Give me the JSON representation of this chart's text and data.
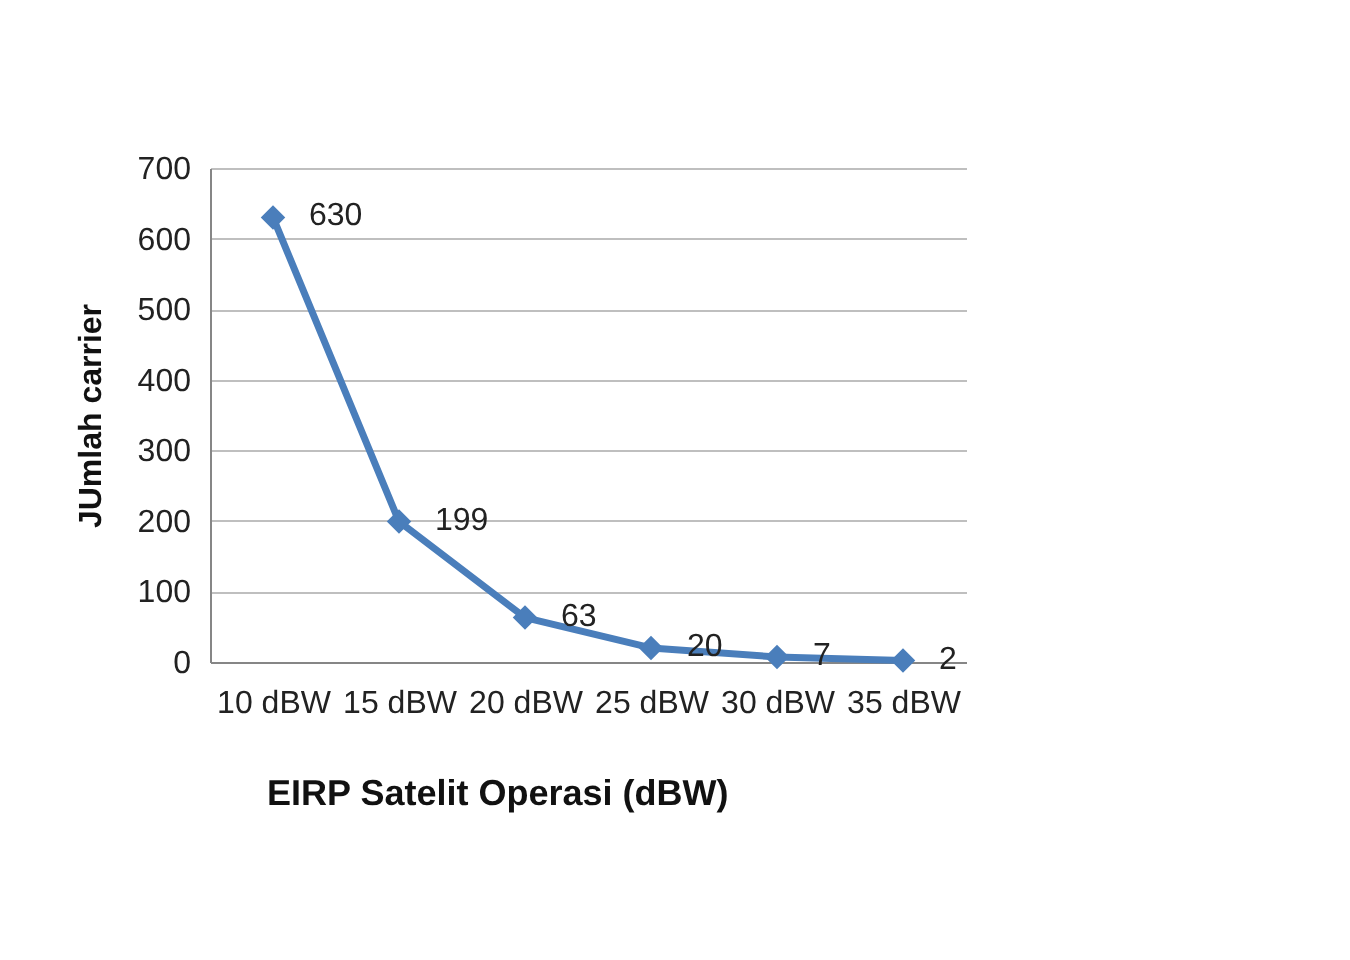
{
  "chart_data": {
    "type": "line",
    "xlabel": "EIRP Satelit Operasi (dBW)",
    "ylabel": "JUmlah carrier",
    "categories": [
      "10 dBW",
      "15 dBW",
      "20 dBW",
      "25 dBW",
      "30 dBW",
      "35 dBW"
    ],
    "series": [
      {
        "color": "#4a7ebb",
        "values": [
          630,
          199,
          63,
          20,
          7,
          2
        ]
      }
    ],
    "ylim": [
      0,
      700
    ],
    "yticks": [
      0,
      100,
      200,
      300,
      400,
      500,
      600,
      700
    ],
    "grid": "y",
    "marker": "diamond",
    "line_style": "solid",
    "data_labels": true
  }
}
